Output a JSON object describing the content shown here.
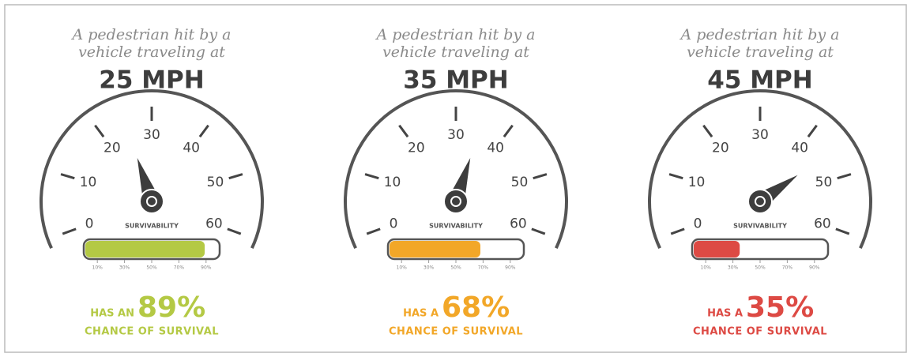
{
  "panels": [
    {
      "intro": [
        "A pedestrian hit by a",
        "vehicle traveling at"
      ],
      "speed": {
        "value": 25,
        "label": "25 MPH"
      },
      "gauge_ticks": [
        0,
        10,
        20,
        30,
        40,
        50,
        60
      ],
      "gauge_range": [
        0,
        60
      ],
      "bar_title": "SURVIVABILITY",
      "survival": {
        "value": 89,
        "label": "89%"
      },
      "bar_range": [
        0,
        100
      ],
      "bar_ticks": [
        {
          "value": 10,
          "label": "10%"
        },
        {
          "value": 30,
          "label": "30%"
        },
        {
          "value": 50,
          "label": "50%"
        },
        {
          "value": 70,
          "label": "70%"
        },
        {
          "value": 90,
          "label": "90%"
        }
      ],
      "prefix": "HAS AN",
      "suffix": "CHANCE OF SURVIVAL",
      "color": "#b4c944"
    },
    {
      "intro": [
        "A pedestrian hit by a",
        "vehicle traveling at"
      ],
      "speed": {
        "value": 35,
        "label": "35 MPH"
      },
      "gauge_ticks": [
        0,
        10,
        20,
        30,
        40,
        50,
        60
      ],
      "gauge_range": [
        0,
        60
      ],
      "bar_title": "SURVIVABILITY",
      "survival": {
        "value": 68,
        "label": "68%"
      },
      "bar_range": [
        0,
        100
      ],
      "bar_ticks": [
        {
          "value": 10,
          "label": "10%"
        },
        {
          "value": 30,
          "label": "30%"
        },
        {
          "value": 50,
          "label": "50%"
        },
        {
          "value": 70,
          "label": "70%"
        },
        {
          "value": 90,
          "label": "90%"
        }
      ],
      "prefix": "HAS A",
      "suffix": "CHANCE OF SURVIVAL",
      "color": "#f2a728"
    },
    {
      "intro": [
        "A pedestrian hit by a",
        "vehicle traveling at"
      ],
      "speed": {
        "value": 45,
        "label": "45 MPH"
      },
      "gauge_ticks": [
        0,
        10,
        20,
        30,
        40,
        50,
        60
      ],
      "gauge_range": [
        0,
        60
      ],
      "bar_title": "SURVIVABILITY",
      "survival": {
        "value": 35,
        "label": "35%"
      },
      "bar_range": [
        0,
        100
      ],
      "bar_ticks": [
        {
          "value": 10,
          "label": "10%"
        },
        {
          "value": 30,
          "label": "30%"
        },
        {
          "value": 50,
          "label": "50%"
        },
        {
          "value": 70,
          "label": "70%"
        },
        {
          "value": 90,
          "label": "90%"
        }
      ],
      "prefix": "HAS A",
      "suffix": "CHANCE OF SURVIVAL",
      "color": "#dd4a44"
    }
  ]
}
